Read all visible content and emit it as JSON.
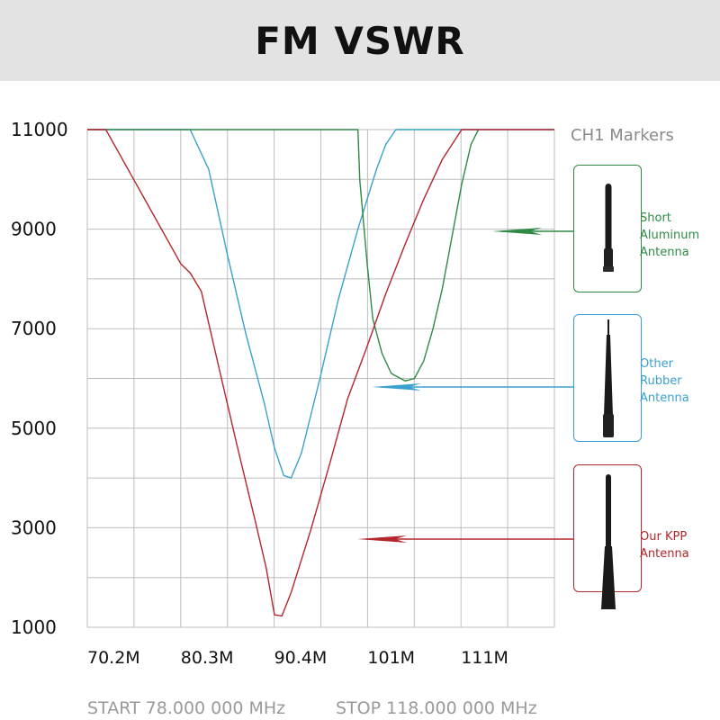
{
  "chart_data": {
    "type": "line",
    "title": "FM VSWR",
    "y_ticks": [
      "11000",
      "9000",
      "7000",
      "5000",
      "3000",
      "1000"
    ],
    "x_ticks": [
      "70.2M",
      "80.3M",
      "90.4M",
      "101M",
      "111M"
    ],
    "ylim": [
      1000,
      11000
    ],
    "xlim_mhz": [
      70.2,
      120.6
    ],
    "grid": true,
    "start_label": "START 78.000 000 MHz",
    "stop_label": "STOP 118.000 000 MHz",
    "markers_label": "CH1 Markers",
    "series": [
      {
        "name": "Our KPP Antenna",
        "label_lines": [
          "Our KPP",
          "Antenna"
        ],
        "color": "#b3262c",
        "x": [
          70.2,
          72.2,
          75.2,
          78.2,
          80.3,
          81.3,
          82.5,
          84.3,
          86.3,
          88.3,
          89.5,
          90.4,
          91.2,
          92.2,
          94.3,
          96.3,
          98.3,
          100.4,
          102.4,
          104.5,
          106.5,
          108.5,
          110.6,
          112.6,
          116.6,
          120.6
        ],
        "values": [
          11000,
          11000,
          10000,
          9000,
          8300,
          8120,
          7750,
          6300,
          4700,
          3150,
          2200,
          1250,
          1230,
          1700,
          2950,
          4250,
          5600,
          6650,
          7700,
          8700,
          9600,
          10400,
          11000,
          11000,
          11000,
          11000
        ]
      },
      {
        "name": "Other Rubber Antenna",
        "label_lines": [
          "Other",
          "Rubber",
          "Antenna"
        ],
        "color": "#3aa0cf",
        "x": [
          70.2,
          78.2,
          80.3,
          81.3,
          83.3,
          85.3,
          87.3,
          89.3,
          90.4,
          91.4,
          92.2,
          93.3,
          95.3,
          97.3,
          99.4,
          101.4,
          102.4,
          103.5,
          106.5,
          120.6
        ],
        "values": [
          11000,
          11000,
          11000,
          11000,
          10200,
          8500,
          6900,
          5500,
          4600,
          4050,
          4000,
          4500,
          6000,
          7600,
          9000,
          10200,
          10700,
          11000,
          11000,
          11000
        ]
      },
      {
        "name": "Short Aluminum Antenna",
        "label_lines": [
          "Short",
          "Aluminum",
          "Antenna"
        ],
        "color": "#2e8a45",
        "x": [
          70.2,
          87.3,
          99.4,
          99.6,
          100.4,
          101.0,
          102.0,
          103.0,
          104.5,
          105.5,
          106.5,
          107.5,
          108.5,
          109.5,
          110.6,
          111.6,
          112.4
        ],
        "values": [
          11000,
          11000,
          11000,
          10000,
          8300,
          7200,
          6500,
          6100,
          5950,
          6000,
          6350,
          7000,
          7800,
          8800,
          9900,
          10700,
          11000
        ]
      }
    ]
  }
}
